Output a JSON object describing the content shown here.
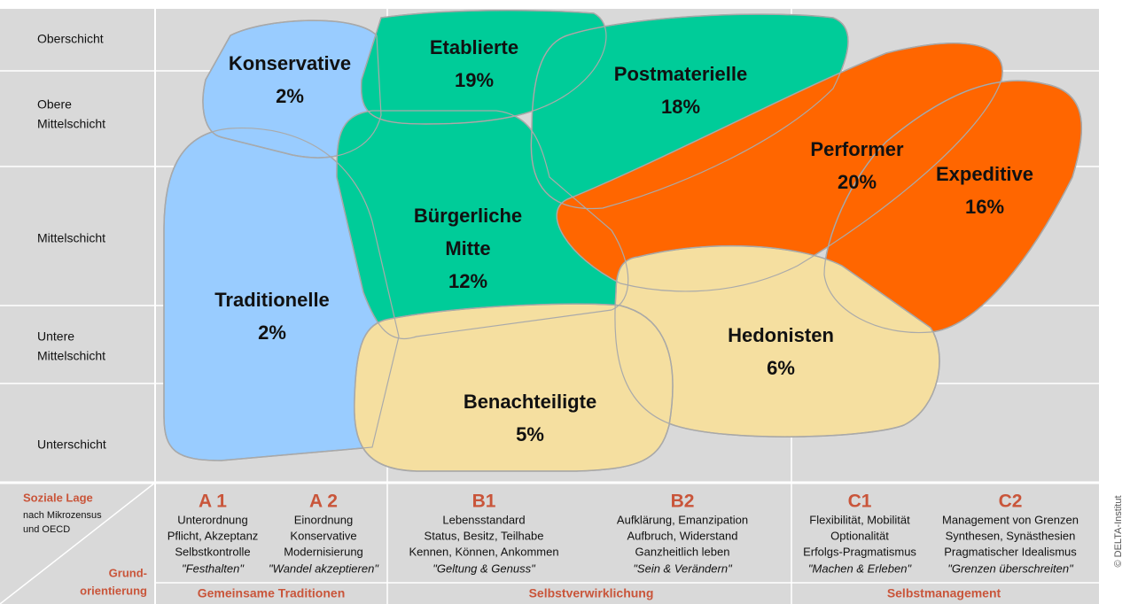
{
  "rows": [
    [
      "Oberschicht"
    ],
    [
      "Obere",
      "Mittelschicht"
    ],
    [
      "Mittelschicht"
    ],
    [
      "Untere",
      "Mittelschicht"
    ],
    [
      "Unterschicht"
    ]
  ],
  "milieus": [
    {
      "name": [
        "Konservative"
      ],
      "share": "2%"
    },
    {
      "name": [
        "Etablierte"
      ],
      "share": "19%"
    },
    {
      "name": [
        "Postmaterielle"
      ],
      "share": "18%"
    },
    {
      "name": [
        "Performer"
      ],
      "share": "20%"
    },
    {
      "name": [
        "Expeditive"
      ],
      "share": "16%"
    },
    {
      "name": [
        "Bürgerliche",
        "Mitte"
      ],
      "share": "12%"
    },
    {
      "name": [
        "Traditionelle"
      ],
      "share": "2%"
    },
    {
      "name": [
        "Hedonisten"
      ],
      "share": "6%"
    },
    {
      "name": [
        "Benachteiligte"
      ],
      "share": "5%"
    }
  ],
  "social_label": "Soziale Lage",
  "social_note": [
    "nach Mikrozensus",
    "und OECD"
  ],
  "orientation_label": [
    "Grund-",
    "orientierung"
  ],
  "columns": [
    {
      "code": "A 1",
      "lines": [
        "Unterordnung",
        "Pflicht, Akzeptanz",
        "Selbstkontrolle"
      ],
      "motto": "\"Festhalten\""
    },
    {
      "code": "A 2",
      "lines": [
        "Einordnung",
        "Konservative",
        "Modernisierung"
      ],
      "motto": "\"Wandel akzeptieren\""
    },
    {
      "code": "B1",
      "lines": [
        "Lebensstandard",
        "Status, Besitz, Teilhabe",
        "Kennen, Können, Ankommen"
      ],
      "motto": "\"Geltung & Genuss\""
    },
    {
      "code": "B2",
      "lines": [
        "Aufklärung, Emanzipation",
        "Aufbruch, Widerstand",
        "Ganzheitlich leben"
      ],
      "motto": "\"Sein & Verändern\""
    },
    {
      "code": "C1",
      "lines": [
        "Flexibilität, Mobilität",
        "Optionalität",
        "Erfolgs-Pragmatismus"
      ],
      "motto": "\"Machen & Erleben\""
    },
    {
      "code": "C2",
      "lines": [
        "Management von Grenzen",
        "Synthesen, Synästhesien",
        "Pragmatischer Idealismus"
      ],
      "motto": "\"Grenzen überschreiten\""
    }
  ],
  "groups": [
    "Gemeinsame Traditionen",
    "Selbstverwirklichung",
    "Selbstmanagement"
  ],
  "copyright": "© DELTA-Institut"
}
